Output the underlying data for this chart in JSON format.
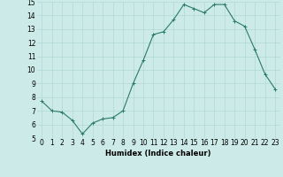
{
  "x": [
    0,
    1,
    2,
    3,
    4,
    5,
    6,
    7,
    8,
    9,
    10,
    11,
    12,
    13,
    14,
    15,
    16,
    17,
    18,
    19,
    20,
    21,
    22,
    23
  ],
  "y": [
    7.7,
    7.0,
    6.9,
    6.3,
    5.3,
    6.1,
    6.4,
    6.5,
    7.0,
    9.0,
    10.7,
    12.6,
    12.8,
    13.7,
    14.8,
    14.5,
    14.2,
    14.8,
    14.8,
    13.6,
    13.2,
    11.5,
    9.7,
    8.6
  ],
  "xlabel": "Humidex (Indice chaleur)",
  "ylim": [
    5,
    15
  ],
  "xlim_min": -0.5,
  "xlim_max": 23.5,
  "yticks": [
    5,
    6,
    7,
    8,
    9,
    10,
    11,
    12,
    13,
    14,
    15
  ],
  "xticks": [
    0,
    1,
    2,
    3,
    4,
    5,
    6,
    7,
    8,
    9,
    10,
    11,
    12,
    13,
    14,
    15,
    16,
    17,
    18,
    19,
    20,
    21,
    22,
    23
  ],
  "line_color": "#2a7a6a",
  "marker_color": "#2a7a6a",
  "bg_color": "#cceae8",
  "grid_color": "#aad4d0",
  "font_color": "#000000",
  "tick_fontsize": 5.5,
  "xlabel_fontsize": 6.0,
  "linewidth": 0.8,
  "markersize": 2.5
}
